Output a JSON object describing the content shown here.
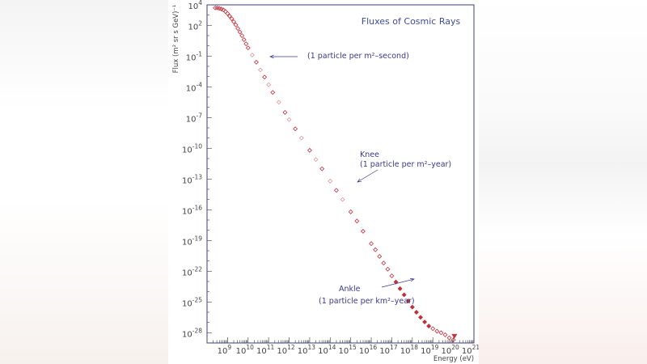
{
  "colors": {
    "frame": "#39398a",
    "title": "#3f4a9a",
    "annotation": "#39398a",
    "points": "#c0303a",
    "points_faint": "#e09aa0",
    "axis": "#555555"
  },
  "chart_data": {
    "type": "scatter",
    "title": "Fluxes of Cosmic Rays",
    "xlabel": "Energy (eV)",
    "ylabel": "Flux (m² sr s GeV)⁻¹",
    "x_scale": "log",
    "y_scale": "log",
    "xlim": [
      100000000.0,
      1e+21
    ],
    "ylim": [
      1e-29,
      10000.0
    ],
    "x_ticks": [
      {
        "value": 1000000000.0,
        "label": "10",
        "exp": "9"
      },
      {
        "value": 10000000000.0,
        "label": "10",
        "exp": "10"
      },
      {
        "value": 100000000000.0,
        "label": "10",
        "exp": "11"
      },
      {
        "value": 1000000000000.0,
        "label": "10",
        "exp": "12"
      },
      {
        "value": 10000000000000.0,
        "label": "10",
        "exp": "13"
      },
      {
        "value": 100000000000000.0,
        "label": "10",
        "exp": "14"
      },
      {
        "value": 1000000000000000.0,
        "label": "10",
        "exp": "15"
      },
      {
        "value": 1e+16,
        "label": "10",
        "exp": "16"
      },
      {
        "value": 1e+17,
        "label": "10",
        "exp": "17"
      },
      {
        "value": 1e+18,
        "label": "10",
        "exp": "18"
      },
      {
        "value": 1e+19,
        "label": "10",
        "exp": "19"
      },
      {
        "value": 1e+20,
        "label": "10",
        "exp": "20"
      },
      {
        "value": 1e+21,
        "label": "10",
        "exp": "21"
      }
    ],
    "y_ticks": [
      {
        "value": 10000.0,
        "label": "10",
        "exp": "4"
      },
      {
        "value": 100.0,
        "label": "10",
        "exp": "2"
      },
      {
        "value": 0.1,
        "label": "10",
        "exp": "-1"
      },
      {
        "value": 0.0001,
        "label": "10",
        "exp": "-4"
      },
      {
        "value": 1e-07,
        "label": "10",
        "exp": "-7"
      },
      {
        "value": 1e-10,
        "label": "10",
        "exp": "-10"
      },
      {
        "value": 1e-13,
        "label": "10",
        "exp": "-13"
      },
      {
        "value": 1e-16,
        "label": "10",
        "exp": "-16"
      },
      {
        "value": 1e-19,
        "label": "10",
        "exp": "-19"
      },
      {
        "value": 1e-22,
        "label": "10",
        "exp": "-22"
      },
      {
        "value": 1e-25,
        "label": "10",
        "exp": "-25"
      },
      {
        "value": 1e-28,
        "label": "10",
        "exp": "-28"
      }
    ],
    "grid": false,
    "points_log10": [
      [
        8.4,
        3.7
      ],
      [
        8.5,
        3.7
      ],
      [
        8.6,
        3.65
      ],
      [
        8.7,
        3.6
      ],
      [
        8.8,
        3.5
      ],
      [
        8.9,
        3.35
      ],
      [
        9.0,
        3.15
      ],
      [
        9.1,
        2.9
      ],
      [
        9.2,
        2.65
      ],
      [
        9.3,
        2.35
      ],
      [
        9.4,
        2.05
      ],
      [
        9.5,
        1.7
      ],
      [
        9.6,
        1.35
      ],
      [
        9.7,
        1.0
      ],
      [
        9.8,
        0.6
      ],
      [
        9.9,
        0.2
      ],
      [
        10.0,
        -0.2
      ],
      [
        10.2,
        -0.9
      ],
      [
        10.4,
        -1.6
      ],
      [
        10.6,
        -2.35
      ],
      [
        10.8,
        -3.05
      ],
      [
        11.0,
        -3.8
      ],
      [
        11.2,
        -4.55
      ],
      [
        11.5,
        -5.5
      ],
      [
        11.8,
        -6.5
      ],
      [
        12.0,
        -7.2
      ],
      [
        12.3,
        -8.1
      ],
      [
        12.6,
        -9.0
      ],
      [
        13.0,
        -10.2
      ],
      [
        13.3,
        -11.1
      ],
      [
        13.6,
        -12.0
      ],
      [
        14.0,
        -13.2
      ],
      [
        14.3,
        -14.1
      ],
      [
        14.6,
        -15.0
      ],
      [
        15.0,
        -16.2
      ],
      [
        15.3,
        -17.1
      ],
      [
        15.6,
        -18.1
      ],
      [
        16.0,
        -19.3
      ],
      [
        16.2,
        -19.9
      ],
      [
        16.4,
        -20.55
      ],
      [
        16.6,
        -21.2
      ],
      [
        16.8,
        -21.8
      ],
      [
        17.0,
        -22.45
      ],
      [
        17.2,
        -23.05
      ],
      [
        17.4,
        -23.7
      ],
      [
        17.6,
        -24.3
      ],
      [
        17.8,
        -24.9
      ],
      [
        18.0,
        -25.5
      ],
      [
        18.2,
        -26.0
      ],
      [
        18.4,
        -26.5
      ],
      [
        18.6,
        -26.95
      ],
      [
        18.8,
        -27.35
      ],
      [
        19.0,
        -27.6
      ],
      [
        19.2,
        -27.85
      ],
      [
        19.4,
        -28.0
      ],
      [
        19.6,
        -28.2
      ],
      [
        19.8,
        -28.5
      ],
      [
        20.0,
        -28.7
      ]
    ],
    "annotations": [
      {
        "text": "(1 particle per m²–second)",
        "point_log10": [
          11.0,
          -3.8
        ]
      },
      {
        "text": "Knee",
        "point_log10": [
          15.5,
          -17.8
        ]
      },
      {
        "text": "(1 particle per m²–year)",
        "point_log10": [
          15.5,
          -17.8
        ]
      },
      {
        "text": "Ankle",
        "point_log10": [
          18.6,
          -26.9
        ]
      },
      {
        "text": "(1 particle per km²–year)",
        "point_log10": [
          18.6,
          -26.9
        ]
      }
    ]
  }
}
